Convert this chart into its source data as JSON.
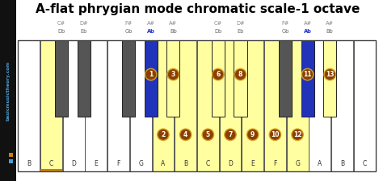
{
  "title": "A-flat phrygian mode chromatic scale-1 octave",
  "title_fontsize": 11,
  "bg_color": "#ffffff",
  "yellow_color": "#ffffa0",
  "blue_color": "#2233bb",
  "dark_key_color": "#555555",
  "number_bg": "#8B4000",
  "number_border": "#d4a020",
  "sidebar_bg": "#111111",
  "sidebar_text_color": "#4a9fd4",
  "sidebar_gold": "#c8820a",
  "sidebar_blue_sq": "#4a9fd4",
  "white_keys": [
    "B",
    "C",
    "D",
    "E",
    "F",
    "G",
    "A",
    "B",
    "C",
    "D",
    "E",
    "F",
    "G",
    "A",
    "B",
    "C"
  ],
  "highlighted_white_idx": [
    1,
    6,
    7,
    8,
    9,
    10,
    11,
    12
  ],
  "orange_underline_idx": [
    1
  ],
  "black_after_white": [
    1,
    2,
    4,
    5,
    6,
    8,
    9,
    11,
    12,
    13
  ],
  "bk_label1": [
    "C#",
    "D#",
    "F#",
    "A#",
    "A#",
    "C#",
    "D#",
    "F#",
    "A#",
    "A#"
  ],
  "bk_label2": [
    "Db",
    "Eb",
    "Gb",
    "Ab",
    "Bb",
    "Db",
    "Eb",
    "Gb",
    "Ab",
    "Bb"
  ],
  "blue_black_idx": [
    3,
    8
  ],
  "highlighted_black_idx": [
    3,
    4,
    5,
    6,
    8,
    9
  ],
  "bk_numbers": {
    "3": 1,
    "4": 3,
    "5": 6,
    "6": 8,
    "8": 11,
    "9": 13
  },
  "wk_numbers": {
    "6": 2,
    "7": 4,
    "8": 5,
    "9": 7,
    "10": 9,
    "11": 10,
    "12": 12
  }
}
